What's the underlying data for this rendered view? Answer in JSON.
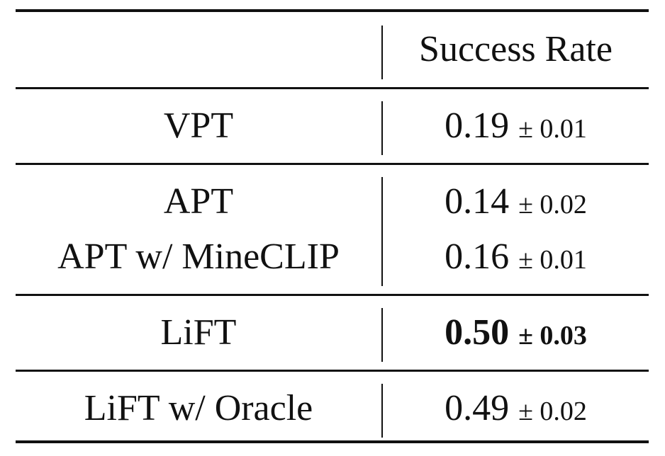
{
  "table": {
    "header": {
      "method": "",
      "metric": "Success Rate"
    },
    "groups": [
      {
        "rows": [
          {
            "method": "VPT",
            "mean": "0.19",
            "pm": "± 0.01",
            "bold": false
          }
        ]
      },
      {
        "rows": [
          {
            "method": "APT",
            "mean": "0.14",
            "pm": "± 0.02",
            "bold": false
          },
          {
            "method": "APT w/ MineCLIP",
            "mean": "0.16",
            "pm": "± 0.01",
            "bold": false
          }
        ]
      },
      {
        "rows": [
          {
            "method": "LiFT",
            "mean": "0.50",
            "pm": "± 0.03",
            "bold": true
          }
        ]
      },
      {
        "rows": [
          {
            "method": "LiFT w/ Oracle",
            "mean": "0.49",
            "pm": "± 0.02",
            "bold": false
          }
        ]
      }
    ]
  }
}
